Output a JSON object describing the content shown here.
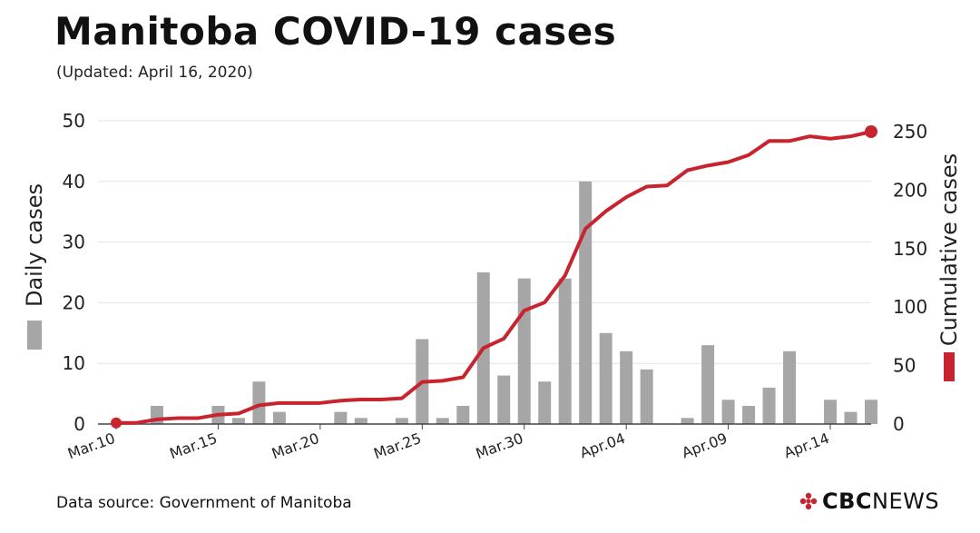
{
  "header": {
    "title": "Manitoba COVID-19 cases",
    "subtitle": "(Updated: April 16, 2020)"
  },
  "footer": {
    "source": "Data source: Government of Manitoba",
    "brand_bold": "CBC",
    "brand_light": "NEWS"
  },
  "colors": {
    "bar": "#a6a6a6",
    "line": "#c8242f",
    "grid": "#e3e3e3",
    "axis": "#444444"
  },
  "chart_data": {
    "type": "bar",
    "title": "Manitoba COVID-19 cases",
    "ylabel": "Daily cases",
    "y2label": "Cumulative cases",
    "ylim": [
      0,
      50
    ],
    "yticks": [
      0,
      10,
      20,
      30,
      40,
      50
    ],
    "y2lim": [
      0,
      260
    ],
    "y2ticks": [
      0,
      50,
      100,
      150,
      200,
      250
    ],
    "x_tick_labels": [
      {
        "index": 0,
        "label": "Mar.10"
      },
      {
        "index": 5,
        "label": "Mar.15"
      },
      {
        "index": 10,
        "label": "Mar.20"
      },
      {
        "index": 15,
        "label": "Mar.25"
      },
      {
        "index": 20,
        "label": "Mar.30"
      },
      {
        "index": 25,
        "label": "Apr.04"
      },
      {
        "index": 30,
        "label": "Apr.09"
      },
      {
        "index": 35,
        "label": "Apr.14"
      }
    ],
    "categories": [
      "Mar 10",
      "Mar 11",
      "Mar 12",
      "Mar 13",
      "Mar 14",
      "Mar 15",
      "Mar 16",
      "Mar 17",
      "Mar 18",
      "Mar 19",
      "Mar 20",
      "Mar 21",
      "Mar 22",
      "Mar 23",
      "Mar 24",
      "Mar 25",
      "Mar 26",
      "Mar 27",
      "Mar 28",
      "Mar 29",
      "Mar 30",
      "Mar 31",
      "Apr 01",
      "Apr 02",
      "Apr 03",
      "Apr 04",
      "Apr 05",
      "Apr 06",
      "Apr 07",
      "Apr 08",
      "Apr 09",
      "Apr 10",
      "Apr 11",
      "Apr 12",
      "Apr 13",
      "Apr 14",
      "Apr 15",
      "Apr 16"
    ],
    "series": [
      {
        "name": "Daily cases",
        "type": "bar",
        "axis": "left",
        "values": [
          0,
          0,
          3,
          0,
          0,
          3,
          1,
          7,
          2,
          0,
          0,
          2,
          1,
          0,
          1,
          14,
          1,
          3,
          25,
          8,
          24,
          7,
          24,
          40,
          15,
          12,
          9,
          0,
          1,
          13,
          4,
          3,
          6,
          12,
          0,
          4,
          2,
          4
        ]
      },
      {
        "name": "Cumulative cases",
        "type": "line",
        "axis": "right",
        "values": [
          1,
          1,
          4,
          5,
          5,
          8,
          9,
          16,
          18,
          18,
          18,
          20,
          21,
          21,
          22,
          36,
          37,
          40,
          65,
          73,
          97,
          104,
          127,
          167,
          182,
          194,
          203,
          204,
          217,
          221,
          224,
          230,
          242,
          242,
          246,
          244,
          246,
          250
        ]
      }
    ]
  }
}
